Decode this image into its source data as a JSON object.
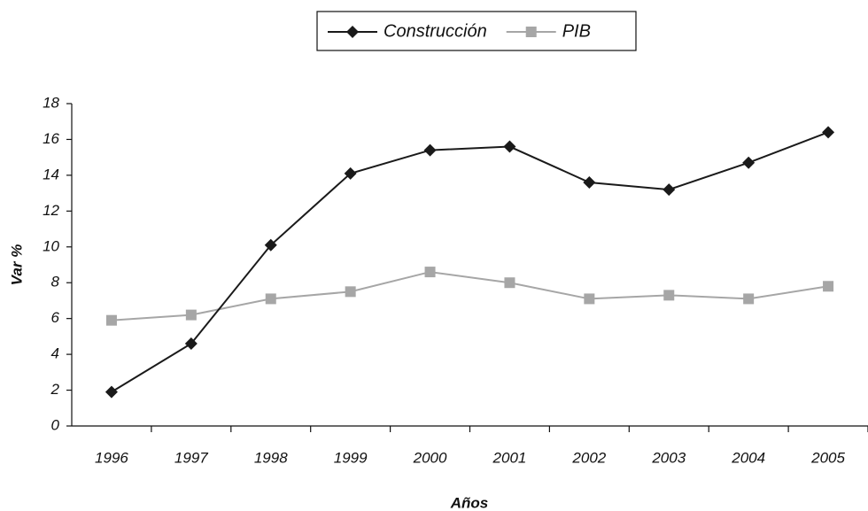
{
  "chart_data": {
    "type": "line",
    "x_label": "Años",
    "y_label": "Var %",
    "categories": [
      "1996",
      "1997",
      "1998",
      "1999",
      "2000",
      "2001",
      "2002",
      "2003",
      "2004",
      "2005"
    ],
    "series": [
      {
        "name": "Construcción",
        "color": "#1a1a1a",
        "marker": "diamond",
        "values": [
          1.9,
          4.6,
          10.1,
          14.1,
          15.4,
          15.6,
          13.6,
          13.2,
          14.7,
          16.4
        ]
      },
      {
        "name": "PIB",
        "color": "#a6a6a6",
        "marker": "square",
        "values": [
          5.9,
          6.2,
          7.1,
          7.5,
          8.6,
          8.0,
          7.1,
          7.3,
          7.1,
          7.8
        ]
      }
    ],
    "ylim": [
      0,
      18
    ],
    "yticks": [
      0,
      2,
      4,
      6,
      8,
      10,
      12,
      14,
      16,
      18
    ],
    "grid": false,
    "legend": "top"
  }
}
